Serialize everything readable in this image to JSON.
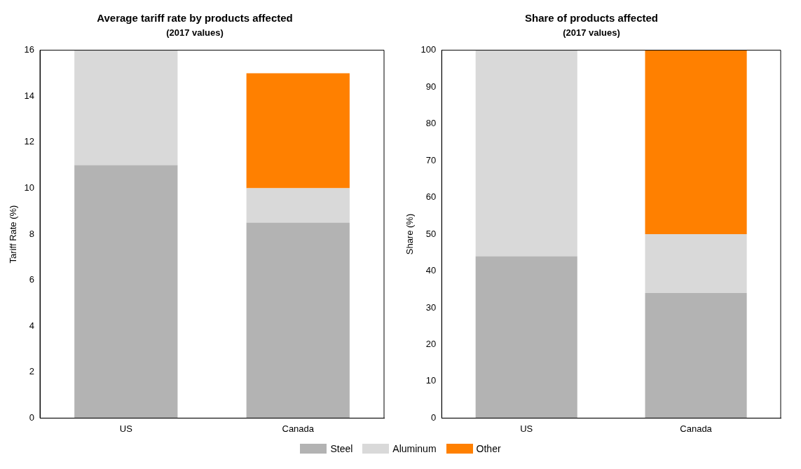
{
  "chart_data": [
    {
      "type": "bar",
      "title": "Average tariff rate by products affected",
      "subtitle": "(2017 values)",
      "ylabel": "Tariff Rate (%)",
      "categories": [
        "US",
        "Canada"
      ],
      "stacked": true,
      "ylim": [
        0,
        16
      ],
      "yticks": [
        0,
        2,
        4,
        6,
        8,
        10,
        12,
        14,
        16
      ],
      "grid": false,
      "legend": "bottom",
      "series": [
        {
          "name": "Steel",
          "color": "#b3b3b3",
          "values": [
            11,
            8.5
          ]
        },
        {
          "name": "Aluminum",
          "color": "#d9d9d9",
          "values": [
            5,
            1.5
          ]
        },
        {
          "name": "Other",
          "color": "#ff8000",
          "values": [
            0,
            5
          ]
        }
      ]
    },
    {
      "type": "bar",
      "title": "Share of products affected",
      "subtitle": "(2017 values)",
      "ylabel": "Share (%)",
      "categories": [
        "US",
        "Canada"
      ],
      "stacked": true,
      "ylim": [
        0,
        100
      ],
      "yticks": [
        0,
        10,
        20,
        30,
        40,
        50,
        60,
        70,
        80,
        90,
        100
      ],
      "grid": false,
      "legend": "bottom",
      "series": [
        {
          "name": "Steel",
          "color": "#b3b3b3",
          "values": [
            44,
            34
          ]
        },
        {
          "name": "Aluminum",
          "color": "#d9d9d9",
          "values": [
            56,
            16
          ]
        },
        {
          "name": "Other",
          "color": "#ff8000",
          "values": [
            0,
            50
          ]
        }
      ]
    }
  ]
}
